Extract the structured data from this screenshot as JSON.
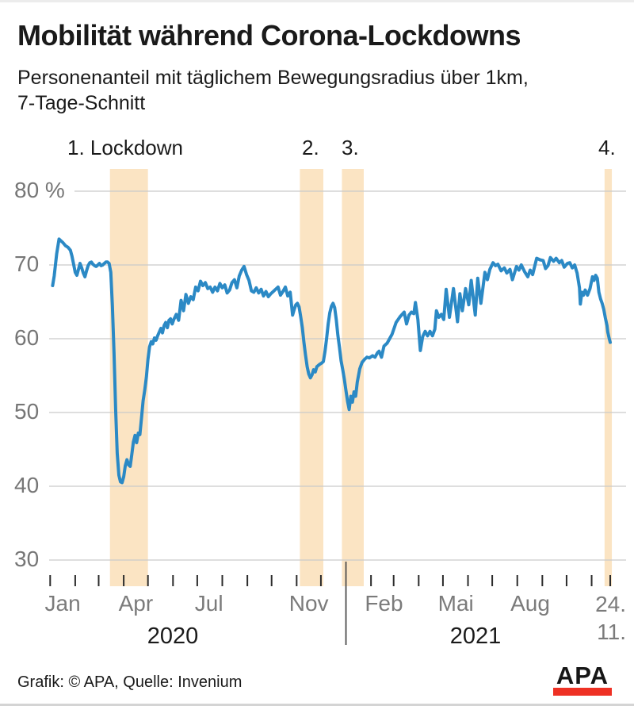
{
  "header": {
    "title": "Mobilität während Corona-Lockdowns",
    "subtitle_line1": "Personenanteil mit täglichem Bewegungsradius über 1km,",
    "subtitle_line2": "7-Tage-Schnitt"
  },
  "annotations": {
    "lockdown1": "1. Lockdown",
    "lockdown2": "2.",
    "lockdown3": "3.",
    "lockdown4": "4."
  },
  "footer": {
    "credit": "Grafik: © APA, Quelle: Invenium",
    "logo_text": "APA"
  },
  "chart_data": {
    "type": "line",
    "title": "Mobilität während Corona-Lockdowns",
    "subtitle": "Personenanteil mit täglichem Bewegungsradius über 1km, 7-Tage-Schnitt",
    "unit": "%",
    "x_axis": {
      "start_date": "2020-01-01",
      "end_date": "2021-11-24",
      "total_days": 693,
      "month_tick_days": [
        0,
        31,
        60,
        91,
        121,
        152,
        182,
        213,
        244,
        274,
        305,
        335,
        397,
        425,
        456,
        486,
        517,
        547,
        578,
        609,
        639,
        670,
        693
      ],
      "year_divider_day": 366,
      "month_labels": [
        {
          "label": "Jan",
          "day": 15.5
        },
        {
          "label": "Apr",
          "day": 106
        },
        {
          "label": "Jul",
          "day": 196.5
        },
        {
          "label": "Nov",
          "day": 320
        },
        {
          "label": "Feb",
          "day": 413
        },
        {
          "label": "Mai",
          "day": 502
        },
        {
          "label": "Aug",
          "day": 594
        }
      ],
      "end_label_top": "24.",
      "end_label_bottom": "11.",
      "year_labels": [
        {
          "label": "2020",
          "day": 152
        },
        {
          "label": "2021",
          "day": 526
        }
      ]
    },
    "y_axis": {
      "ylim": [
        30,
        83
      ],
      "ticks": [
        80,
        70,
        60,
        50,
        40,
        30
      ],
      "tick_labels": [
        "80 %",
        "70",
        "60",
        "50",
        "40",
        "30"
      ],
      "grid": true
    },
    "lockdown_bands_days": [
      {
        "name": "1. Lockdown",
        "start": 74,
        "end": 121
      },
      {
        "name": "2. Lockdown",
        "start": 309,
        "end": 338
      },
      {
        "name": "3. Lockdown",
        "start": 361,
        "end": 388
      },
      {
        "name": "4. Lockdown",
        "start": 686,
        "end": 695
      }
    ],
    "series": [
      {
        "name": "Personenanteil mit täglichem Bewegungsradius über 1km, 7-Tage-Schnitt",
        "color": "#2b89c5",
        "points_day_pct": [
          [
            3,
            67.2
          ],
          [
            5,
            68.5
          ],
          [
            8,
            71.5
          ],
          [
            11,
            73.5
          ],
          [
            13,
            73.3
          ],
          [
            16,
            73.0
          ],
          [
            19,
            72.6
          ],
          [
            22,
            72.4
          ],
          [
            25,
            72.0
          ],
          [
            27,
            71.2
          ],
          [
            29,
            70.1
          ],
          [
            31,
            69.0
          ],
          [
            33,
            68.6
          ],
          [
            35,
            69.4
          ],
          [
            37,
            70.2
          ],
          [
            39,
            69.6
          ],
          [
            41,
            68.9
          ],
          [
            43,
            68.4
          ],
          [
            45,
            69.2
          ],
          [
            47,
            69.9
          ],
          [
            49,
            70.3
          ],
          [
            51,
            70.4
          ],
          [
            53,
            70.1
          ],
          [
            55,
            69.9
          ],
          [
            57,
            69.8
          ],
          [
            59,
            70.0
          ],
          [
            61,
            70.2
          ],
          [
            63,
            69.9
          ],
          [
            65,
            70.0
          ],
          [
            67,
            70.2
          ],
          [
            69,
            70.4
          ],
          [
            71,
            70.4
          ],
          [
            73,
            70.2
          ],
          [
            75,
            69.0
          ],
          [
            77,
            64.5
          ],
          [
            79,
            58.0
          ],
          [
            81,
            50.5
          ],
          [
            83,
            44.5
          ],
          [
            85,
            41.5
          ],
          [
            87,
            40.6
          ],
          [
            89,
            40.5
          ],
          [
            91,
            41.3
          ],
          [
            93,
            42.8
          ],
          [
            95,
            43.6
          ],
          [
            97,
            42.9
          ],
          [
            99,
            42.7
          ],
          [
            101,
            44.3
          ],
          [
            103,
            46.0
          ],
          [
            105,
            46.9
          ],
          [
            107,
            45.9
          ],
          [
            109,
            47.2
          ],
          [
            111,
            47.0
          ],
          [
            113,
            49.2
          ],
          [
            115,
            51.6
          ],
          [
            117,
            53.0
          ],
          [
            119,
            54.8
          ],
          [
            121,
            57.2
          ],
          [
            123,
            58.9
          ],
          [
            125,
            59.6
          ],
          [
            127,
            59.3
          ],
          [
            129,
            60.1
          ],
          [
            131,
            59.8
          ],
          [
            133,
            60.4
          ],
          [
            135,
            60.9
          ],
          [
            137,
            61.4
          ],
          [
            139,
            60.8
          ],
          [
            141,
            61.8
          ],
          [
            143,
            62.2
          ],
          [
            145,
            61.5
          ],
          [
            147,
            62.5
          ],
          [
            149,
            62.7
          ],
          [
            151,
            62.0
          ],
          [
            153,
            62.6
          ],
          [
            156,
            63.3
          ],
          [
            159,
            62.5
          ],
          [
            162,
            65.2
          ],
          [
            165,
            63.8
          ],
          [
            168,
            66.0
          ],
          [
            171,
            64.8
          ],
          [
            174,
            65.7
          ],
          [
            177,
            65.3
          ],
          [
            180,
            67.0
          ],
          [
            183,
            66.5
          ],
          [
            186,
            67.8
          ],
          [
            189,
            67.2
          ],
          [
            192,
            67.6
          ],
          [
            195,
            66.8
          ],
          [
            198,
            67.0
          ],
          [
            201,
            66.3
          ],
          [
            204,
            67.0
          ],
          [
            207,
            66.5
          ],
          [
            210,
            67.5
          ],
          [
            213,
            66.9
          ],
          [
            216,
            67.3
          ],
          [
            219,
            66.2
          ],
          [
            222,
            66.6
          ],
          [
            225,
            67.6
          ],
          [
            228,
            68.0
          ],
          [
            231,
            66.9
          ],
          [
            234,
            68.5
          ],
          [
            237,
            69.3
          ],
          [
            240,
            69.8
          ],
          [
            243,
            68.7
          ],
          [
            246,
            67.9
          ],
          [
            249,
            66.5
          ],
          [
            252,
            66.3
          ],
          [
            255,
            66.9
          ],
          [
            258,
            66.2
          ],
          [
            261,
            66.7
          ],
          [
            264,
            65.8
          ],
          [
            267,
            66.4
          ],
          [
            270,
            65.7
          ],
          [
            273,
            66.1
          ],
          [
            276,
            66.4
          ],
          [
            279,
            66.7
          ],
          [
            282,
            67.0
          ],
          [
            285,
            65.9
          ],
          [
            288,
            66.4
          ],
          [
            291,
            67.0
          ],
          [
            294,
            65.8
          ],
          [
            297,
            66.3
          ],
          [
            300,
            63.2
          ],
          [
            302,
            64.0
          ],
          [
            304,
            64.6
          ],
          [
            306,
            64.8
          ],
          [
            308,
            64.3
          ],
          [
            310,
            63.0
          ],
          [
            312,
            61.5
          ],
          [
            314,
            59.5
          ],
          [
            316,
            57.8
          ],
          [
            318,
            56.2
          ],
          [
            320,
            55.2
          ],
          [
            322,
            54.7
          ],
          [
            324,
            55.1
          ],
          [
            326,
            55.8
          ],
          [
            328,
            55.5
          ],
          [
            330,
            56.2
          ],
          [
            333,
            56.5
          ],
          [
            336,
            56.7
          ],
          [
            338,
            56.9
          ],
          [
            340,
            58.2
          ],
          [
            342,
            60.0
          ],
          [
            344,
            62.0
          ],
          [
            346,
            63.5
          ],
          [
            348,
            64.4
          ],
          [
            350,
            64.8
          ],
          [
            352,
            64.2
          ],
          [
            354,
            62.6
          ],
          [
            356,
            60.5
          ],
          [
            358,
            58.8
          ],
          [
            360,
            57.0
          ],
          [
            362,
            55.8
          ],
          [
            364,
            54.5
          ],
          [
            366,
            53.0
          ],
          [
            368,
            51.5
          ],
          [
            370,
            50.4
          ],
          [
            372,
            52.2
          ],
          [
            374,
            51.4
          ],
          [
            376,
            52.8
          ],
          [
            378,
            52.2
          ],
          [
            380,
            54.1
          ],
          [
            383,
            55.9
          ],
          [
            386,
            56.8
          ],
          [
            389,
            57.2
          ],
          [
            392,
            57.5
          ],
          [
            395,
            57.4
          ],
          [
            399,
            57.7
          ],
          [
            402,
            57.5
          ],
          [
            405,
            58.1
          ],
          [
            407,
            58.3
          ],
          [
            410,
            57.5
          ],
          [
            413,
            59.0
          ],
          [
            417,
            59.4
          ],
          [
            420,
            60.0
          ],
          [
            423,
            60.6
          ],
          [
            428,
            62.2
          ],
          [
            433,
            63.0
          ],
          [
            438,
            63.6
          ],
          [
            441,
            62.0
          ],
          [
            444,
            63.2
          ],
          [
            447,
            63.6
          ],
          [
            450,
            63.4
          ],
          [
            452,
            64.9
          ],
          [
            455,
            62.6
          ],
          [
            458,
            58.4
          ],
          [
            461,
            60.3
          ],
          [
            464,
            61.0
          ],
          [
            467,
            60.4
          ],
          [
            470,
            61.0
          ],
          [
            473,
            60.4
          ],
          [
            476,
            61.3
          ],
          [
            478,
            63.8
          ],
          [
            481,
            62.9
          ],
          [
            484,
            63.3
          ],
          [
            487,
            62.6
          ],
          [
            490,
            66.7
          ],
          [
            494,
            62.9
          ],
          [
            499,
            66.8
          ],
          [
            504,
            62.3
          ],
          [
            507,
            66.1
          ],
          [
            510,
            63.8
          ],
          [
            514,
            66.8
          ],
          [
            518,
            64.6
          ],
          [
            521,
            67.9
          ],
          [
            526,
            63.2
          ],
          [
            529,
            68.2
          ],
          [
            533,
            64.8
          ],
          [
            538,
            69.0
          ],
          [
            541,
            68.0
          ],
          [
            544,
            69.4
          ],
          [
            548,
            70.3
          ],
          [
            551,
            69.9
          ],
          [
            554,
            70.1
          ],
          [
            558,
            69.2
          ],
          [
            562,
            69.6
          ],
          [
            565,
            68.9
          ],
          [
            569,
            69.4
          ],
          [
            572,
            68.0
          ],
          [
            577,
            69.8
          ],
          [
            580,
            69.3
          ],
          [
            583,
            70.0
          ],
          [
            587,
            69.1
          ],
          [
            591,
            68.4
          ],
          [
            594,
            69.3
          ],
          [
            597,
            68.7
          ],
          [
            602,
            70.9
          ],
          [
            606,
            70.7
          ],
          [
            610,
            70.6
          ],
          [
            613,
            69.5
          ],
          [
            616,
            69.9
          ],
          [
            619,
            71.0
          ],
          [
            623,
            70.5
          ],
          [
            626,
            70.9
          ],
          [
            630,
            70.3
          ],
          [
            633,
            70.6
          ],
          [
            636,
            69.7
          ],
          [
            640,
            70.2
          ],
          [
            643,
            70.3
          ],
          [
            646,
            69.6
          ],
          [
            649,
            70.0
          ],
          [
            652,
            68.9
          ],
          [
            655,
            66.9
          ],
          [
            656,
            64.7
          ],
          [
            658,
            66.3
          ],
          [
            660,
            65.9
          ],
          [
            662,
            66.6
          ],
          [
            665,
            65.9
          ],
          [
            668,
            66.8
          ],
          [
            671,
            68.4
          ],
          [
            673,
            67.9
          ],
          [
            675,
            68.6
          ],
          [
            677,
            68.2
          ],
          [
            679,
            66.3
          ],
          [
            681,
            65.4
          ],
          [
            683,
            64.8
          ],
          [
            685,
            64.0
          ],
          [
            687,
            62.8
          ],
          [
            689,
            61.8
          ],
          [
            690,
            60.9
          ],
          [
            692,
            59.9
          ],
          [
            693,
            59.5
          ]
        ]
      }
    ],
    "colors": {
      "line": "#2b89c5",
      "band": "#fbe4c3",
      "grid": "#c9c9c9",
      "tick": "#2b2b2b",
      "divider": "#4d4d4d",
      "axis_text": "#767676",
      "logo_red": "#ee3124"
    },
    "legend": {
      "shown": false
    }
  }
}
